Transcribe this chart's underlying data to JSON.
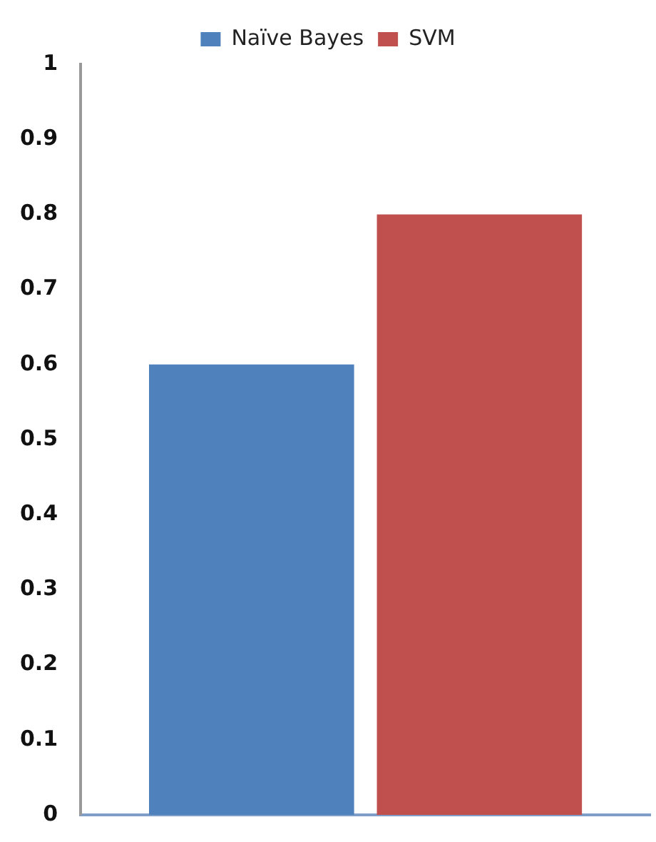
{
  "chart_data": {
    "type": "bar",
    "categories": [
      null
    ],
    "series": [
      {
        "name": "Naïve Bayes",
        "color": "#4f81bd",
        "values": [
          0.6
        ]
      },
      {
        "name": "SVM",
        "color": "#c0504d",
        "values": [
          0.8
        ]
      }
    ],
    "ylim": [
      0,
      1
    ],
    "yticks": [
      0,
      0.1,
      0.2,
      0.3,
      0.4,
      0.5,
      0.6,
      0.7,
      0.8,
      0.9,
      1
    ],
    "grid": false,
    "legend": "top"
  }
}
